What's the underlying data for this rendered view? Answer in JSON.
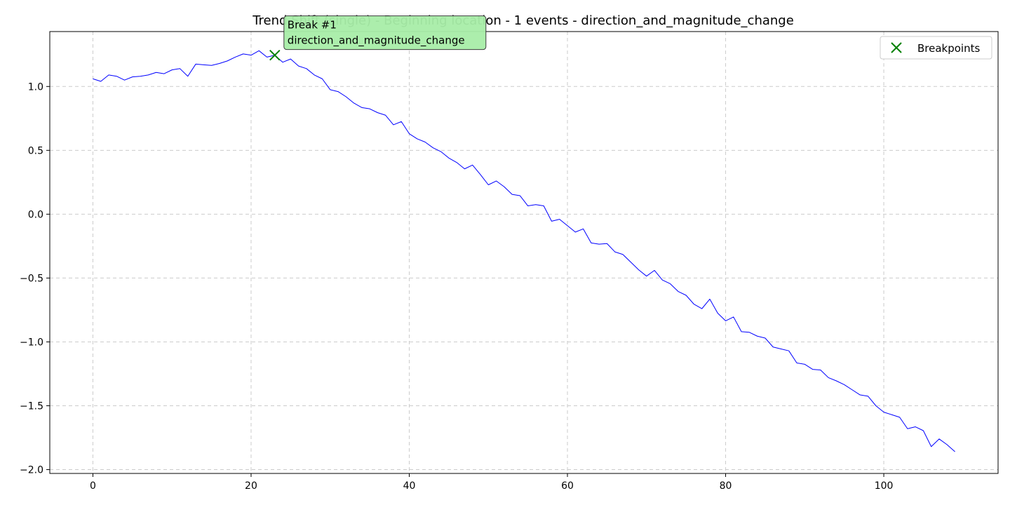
{
  "chart_data": {
    "type": "line",
    "title": "Trend Shift (single) - Beginning location - 1 events - direction_and_magnitude_change",
    "xlabel": "",
    "ylabel": "",
    "xlim": [
      -5.45,
      114.45
    ],
    "ylim": [
      -2.03,
      1.43
    ],
    "x_ticks": [
      0,
      20,
      40,
      60,
      80,
      100
    ],
    "y_ticks": [
      1.0,
      0.5,
      0.0,
      -0.5,
      -1.0,
      -1.5,
      -2.0
    ],
    "x_tick_labels": [
      "0",
      "20",
      "40",
      "60",
      "80",
      "100"
    ],
    "y_tick_labels": [
      "1.0",
      "0.5",
      "0.0",
      "−0.5",
      "−1.0",
      "−1.5",
      "−2.0"
    ],
    "grid": true,
    "legend_position": "top-right",
    "series": [
      {
        "type": "line",
        "color": "#0000ff",
        "x": [
          0,
          1,
          2,
          3,
          4,
          5,
          6,
          7,
          8,
          9,
          10,
          11,
          12,
          13,
          14,
          15,
          16,
          17,
          18,
          19,
          20,
          21,
          22,
          23,
          24,
          25,
          26,
          27,
          28,
          29,
          30,
          31,
          32,
          33,
          34,
          35,
          36,
          37,
          38,
          39,
          40,
          41,
          42,
          43,
          44,
          45,
          46,
          47,
          48,
          49,
          50,
          51,
          52,
          53,
          54,
          55,
          56,
          57,
          58,
          59,
          60,
          61,
          62,
          63,
          64,
          65,
          66,
          67,
          68,
          69,
          70,
          71,
          72,
          73,
          74,
          75,
          76,
          77,
          78,
          79,
          80,
          81,
          82,
          83,
          84,
          85,
          86,
          87,
          88,
          89,
          90,
          91,
          92,
          93,
          94,
          95,
          96,
          97,
          98,
          99,
          100,
          101,
          102,
          103,
          104,
          105,
          106,
          107,
          108,
          109
        ],
        "y": [
          1.06,
          1.04,
          1.09,
          1.08,
          1.05,
          1.075,
          1.08,
          1.09,
          1.11,
          1.1,
          1.13,
          1.14,
          1.08,
          1.175,
          1.17,
          1.165,
          1.18,
          1.2,
          1.23,
          1.255,
          1.245,
          1.28,
          1.23,
          1.245,
          1.19,
          1.215,
          1.16,
          1.14,
          1.09,
          1.06,
          0.975,
          0.96,
          0.92,
          0.87,
          0.835,
          0.825,
          0.795,
          0.775,
          0.7,
          0.725,
          0.63,
          0.59,
          0.565,
          0.52,
          0.49,
          0.44,
          0.405,
          0.355,
          0.385,
          0.31,
          0.23,
          0.26,
          0.215,
          0.155,
          0.145,
          0.065,
          0.075,
          0.065,
          -0.055,
          -0.04,
          -0.09,
          -0.14,
          -0.115,
          -0.225,
          -0.235,
          -0.23,
          -0.295,
          -0.315,
          -0.375,
          -0.435,
          -0.485,
          -0.44,
          -0.515,
          -0.545,
          -0.605,
          -0.635,
          -0.705,
          -0.74,
          -0.665,
          -0.775,
          -0.835,
          -0.805,
          -0.92,
          -0.925,
          -0.955,
          -0.97,
          -1.04,
          -1.055,
          -1.07,
          -1.165,
          -1.175,
          -1.215,
          -1.22,
          -1.28,
          -1.305,
          -1.335,
          -1.375,
          -1.415,
          -1.425,
          -1.5,
          -1.55,
          -1.57,
          -1.59,
          -1.68,
          -1.665,
          -1.695,
          -1.82,
          -1.76,
          -1.805,
          -1.86
        ]
      }
    ],
    "breakpoints": {
      "name": "Breakpoints",
      "color": "#008000",
      "points": [
        {
          "x": 23,
          "y": 1.245
        }
      ]
    },
    "annotations": [
      {
        "x": 23,
        "y": 1.245,
        "line1": "Break #1",
        "line2": "direction_and_magnitude_change",
        "background": "#a8eea8"
      }
    ]
  }
}
